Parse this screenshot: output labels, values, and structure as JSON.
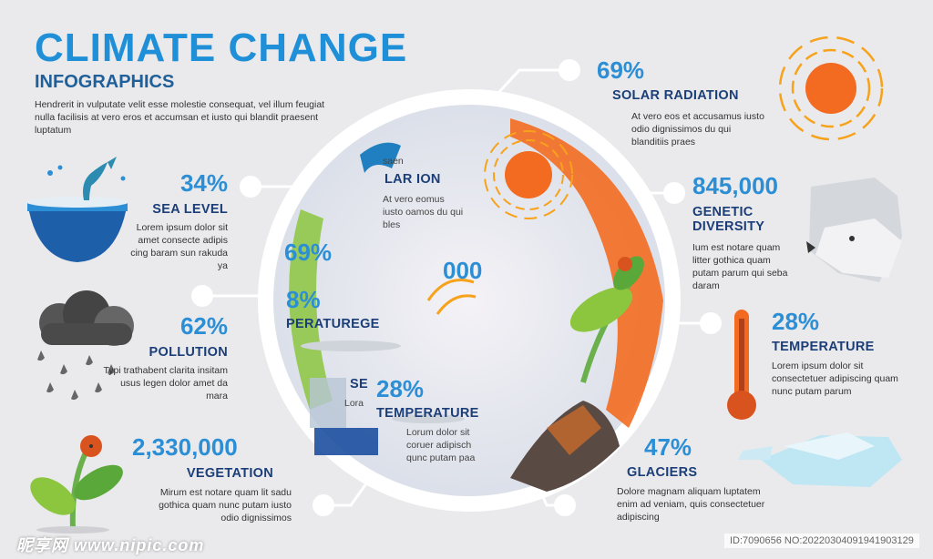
{
  "header": {
    "title": "CLIMATE CHANGE",
    "subtitle": "INFOGRAPHICS",
    "intro": "Hendrerit in vulputate velit esse molestie consequat, vel illum feugiat nulla facilisis at vero eros et accumsan et iusto qui blandit praesent luptatum"
  },
  "left": [
    {
      "value": "34%",
      "label": "SEA LEVEL",
      "text": "Lorem ipsum dolor sit amet consecte adipis cing baram sun rakuda ya"
    },
    {
      "value": "62%",
      "label": "POLLUTION",
      "text": "Typi trathabent clarita insitam usus legen dolor amet da mara"
    },
    {
      "value": "2,330,000",
      "label": "VEGETATION",
      "text": "Mirum est notare quam lit sadu gothica quam nunc putam iusto odio dignissimos"
    }
  ],
  "right": [
    {
      "value": "69%",
      "label": "SOLAR RADIATION",
      "text": "At vero eos et accusamus iusto odio dignissimos du qui blanditiis praes"
    },
    {
      "value": "845,000",
      "label": "GENETIC DIVERSITY",
      "text": "Ium est notare quam litter gothica quam putam parum qui seba daram"
    },
    {
      "value": "28%",
      "label": "TEMPERATURE",
      "text": "Lorem ipsum dolor sit consectetuer adipiscing quam nunc putam parum"
    },
    {
      "value": "47%",
      "label": "GLACIERS",
      "text": "Dolore magnam aliquam luptatem enim ad veniam, quis consectetuer adipiscing"
    }
  ],
  "circle": {
    "sun_label": "LAR ION",
    "sun_small": "saen",
    "sun_text": "At vero eomus iusto oamos du qui bles",
    "num1": "69%",
    "num2": "000",
    "pct": "8%",
    "temp_label": "PERATUREGE",
    "sea_label": "SE",
    "sea_text": "Lora",
    "temp_num": "28%",
    "temp_label2": "TEMPERATURE",
    "temp_text": "Lorum dolor sit coruer adipisch qunc putam paa"
  },
  "watermark": {
    "left": "昵享网 www.nipic.com",
    "right": "ID:7090656 NO:20220304091941903129"
  },
  "colors": {
    "accent": "#2c8fd6",
    "title": "#1f8fd8",
    "label": "#1b3e78",
    "sun": "#f36b21"
  }
}
